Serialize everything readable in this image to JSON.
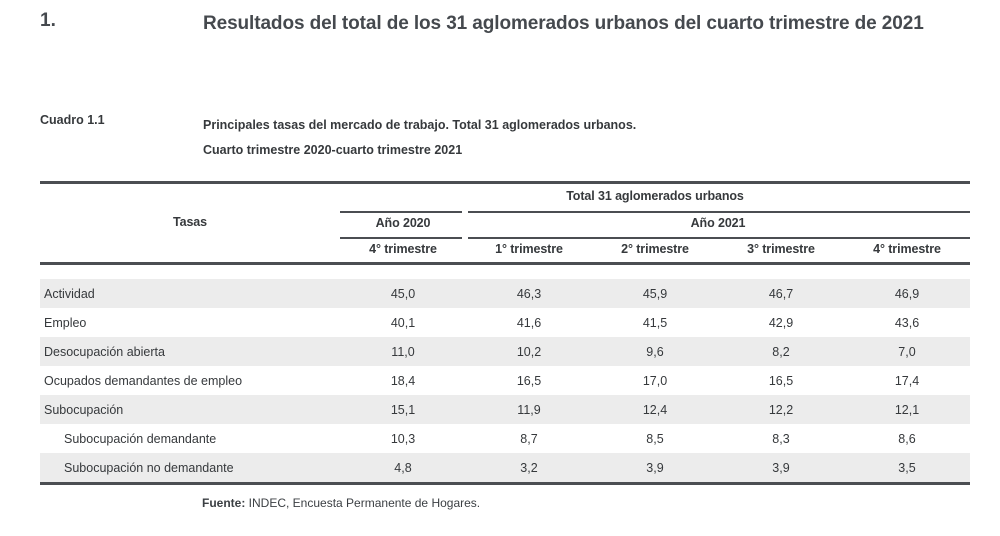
{
  "page": {
    "section_number": "1.",
    "title": "Resultados del total de los 31 aglomerados urbanos del cuarto trimestre de 2021",
    "table_label": "Cuadro 1.1",
    "table_title_lines": [
      "Principales tasas del mercado de trabajo. Total 31 aglomerados urbanos.",
      "Cuarto trimestre 2020-cuarto trimestre 2021"
    ],
    "source_label": "Fuente:",
    "source_text": " INDEC, Encuesta Permanente de Hogares."
  },
  "table": {
    "row_header": "Tasas",
    "group_header": "Total 31 aglomerados urbanos",
    "year_groups": [
      {
        "label": "Año 2020",
        "span": 1
      },
      {
        "label": "Año 2021",
        "span": 4
      }
    ],
    "columns": [
      "4° trimestre",
      "1° trimestre",
      "2° trimestre",
      "3° trimestre",
      "4° trimestre"
    ],
    "rows": [
      {
        "label": "Actividad",
        "indent": false,
        "shaded": true,
        "values": [
          "45,0",
          "46,3",
          "45,9",
          "46,7",
          "46,9"
        ]
      },
      {
        "label": "Empleo",
        "indent": false,
        "shaded": false,
        "values": [
          "40,1",
          "41,6",
          "41,5",
          "42,9",
          "43,6"
        ]
      },
      {
        "label": "Desocupación abierta",
        "indent": false,
        "shaded": true,
        "values": [
          "11,0",
          "10,2",
          "9,6",
          "8,2",
          "7,0"
        ]
      },
      {
        "label": "Ocupados demandantes de empleo",
        "indent": false,
        "shaded": false,
        "values": [
          "18,4",
          "16,5",
          "17,0",
          "16,5",
          "17,4"
        ]
      },
      {
        "label": "Subocupación",
        "indent": false,
        "shaded": true,
        "values": [
          "15,1",
          "11,9",
          "12,4",
          "12,2",
          "12,1"
        ]
      },
      {
        "label": "Subocupación demandante",
        "indent": true,
        "shaded": false,
        "values": [
          "10,3",
          "8,7",
          "8,5",
          "8,3",
          "8,6"
        ]
      },
      {
        "label": "Subocupación no demandante",
        "indent": true,
        "shaded": true,
        "values": [
          "4,8",
          "3,2",
          "3,9",
          "3,9",
          "3,5"
        ]
      }
    ]
  },
  "colors": {
    "text": "#36393c",
    "heading": "#45494e",
    "table_line": "#4b4e52",
    "row_shade": "#ececec"
  }
}
